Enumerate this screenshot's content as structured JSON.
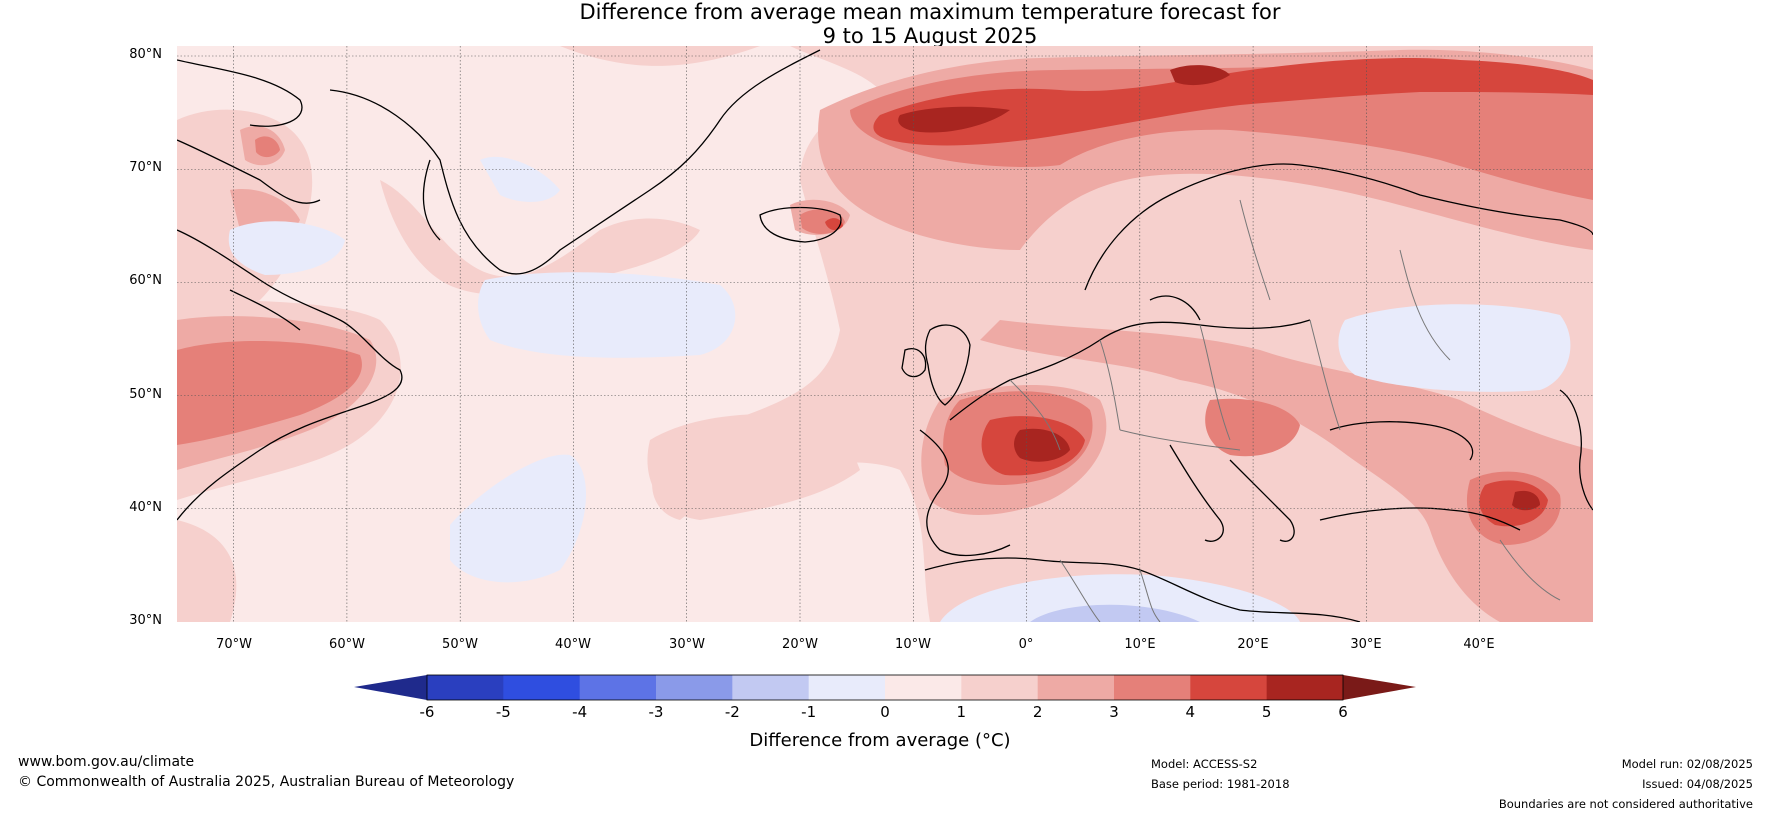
{
  "map": {
    "title_line1": "Difference from average mean maximum temperature forecast for",
    "title_line2": "9 to 15 August 2025",
    "lat_labels": [
      "80°N",
      "70°N",
      "60°N",
      "50°N",
      "40°N",
      "30°N"
    ],
    "lon_labels": [
      "70°W",
      "60°W",
      "50°W",
      "40°W",
      "30°W",
      "20°W",
      "10°W",
      "0°",
      "10°E",
      "20°E",
      "30°E",
      "40°E"
    ],
    "extent": {
      "lon_min": -75,
      "lon_max": 50,
      "lat_min": 30,
      "lat_max": 81
    }
  },
  "colorbar": {
    "title": "Difference from average (°C)",
    "tick_labels": [
      "-6",
      "-5",
      "-4",
      "-3",
      "-2",
      "-1",
      "0",
      "1",
      "2",
      "3",
      "4",
      "5",
      "6"
    ],
    "colors": [
      "#1f2a8c",
      "#2a3fbf",
      "#2f4ee0",
      "#5d73e6",
      "#8a9ae9",
      "#c2c9f2",
      "#e8ebfb",
      "#fbe9e8",
      "#f6d0cd",
      "#eeaaa5",
      "#e58079",
      "#d6463d",
      "#a82520",
      "#7a1a18"
    ]
  },
  "footer": {
    "website": "www.bom.gov.au/climate",
    "copyright": "© Commonwealth of Australia 2025, Australian Bureau of Meteorology",
    "model": "Model: ACCESS-S2",
    "base_period": "Base period: 1981-2018",
    "model_run": "Model run: 02/08/2025",
    "issued": "Issued: 04/08/2025",
    "boundaries_note": "Boundaries are not considered authoritative"
  }
}
